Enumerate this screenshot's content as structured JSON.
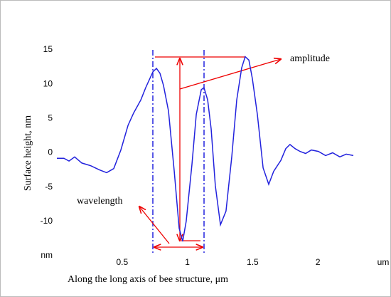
{
  "chart_data": {
    "type": "line",
    "y_label": "Surface height, nm",
    "x_label": "Along the long axis of bee structure, μm",
    "annotations": [
      "amplitude",
      "wavelength"
    ],
    "xlim": [
      0,
      2.5
    ],
    "ylim": [
      -15,
      15
    ],
    "xticks": [
      0.5,
      1,
      1.5,
      2,
      {
        "value": 2.5,
        "label": "um"
      }
    ],
    "yticks": [
      {
        "value": -15,
        "label": "nm"
      },
      -10,
      -5,
      0,
      5,
      10,
      15
    ],
    "series": [
      {
        "color": "#2222dd",
        "x": [
          0,
          0.054,
          0.093,
          0.136,
          0.191,
          0.261,
          0.327,
          0.381,
          0.436,
          0.49,
          0.545,
          0.588,
          0.643,
          0.681,
          0.736,
          0.763,
          0.79,
          0.817,
          0.855,
          0.899,
          0.937,
          0.964,
          0.991,
          1.035,
          1.068,
          1.106,
          1.127,
          1.155,
          1.182,
          1.214,
          1.253,
          1.296,
          1.34,
          1.378,
          1.416,
          1.443,
          1.471,
          1.498,
          1.536,
          1.58,
          1.623,
          1.661,
          1.716,
          1.754,
          1.786,
          1.825,
          1.863,
          1.906,
          1.95,
          2.004,
          2.059,
          2.113,
          2.168,
          2.217,
          2.271
        ],
        "values": [
          -0.8,
          -0.8,
          -1.2,
          -0.6,
          -1.5,
          -1.9,
          -2.5,
          -2.9,
          -2.3,
          0.4,
          4.0,
          5.8,
          7.7,
          9.5,
          11.8,
          12.3,
          11.6,
          9.8,
          6.1,
          -2.7,
          -11.0,
          -12.9,
          -10.0,
          -1.7,
          5.6,
          9.2,
          9.5,
          7.7,
          3.5,
          -4.8,
          -10.5,
          -8.5,
          -0.6,
          7.7,
          12.4,
          14.0,
          13.5,
          10.8,
          5.6,
          -2.2,
          -4.6,
          -2.7,
          -1.1,
          0.6,
          1.2,
          0.6,
          0.2,
          -0.1,
          0.4,
          0.2,
          -0.4,
          0,
          -0.6,
          -0.2,
          -0.4
        ]
      }
    ]
  }
}
